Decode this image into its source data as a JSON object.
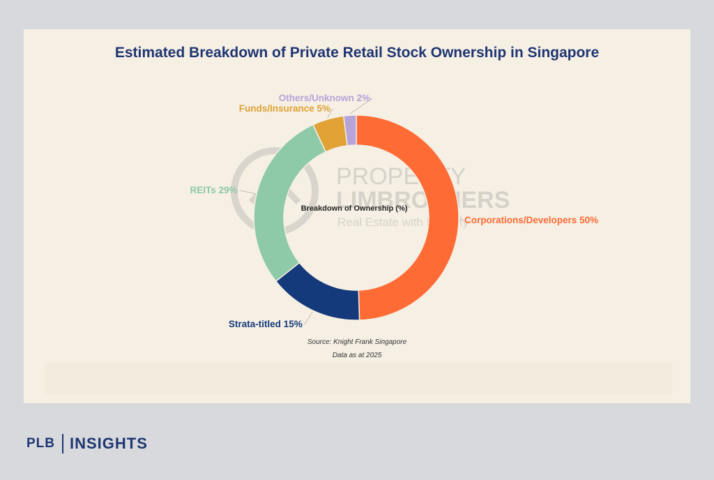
{
  "title": "Estimated Breakdown of Private Retail Stock Ownership in Singapore",
  "watermark": {
    "line1": "PROPERTY",
    "line2": "LIMBROTHERS",
    "line3": "Real Estate with Integrity"
  },
  "source": "Source: Knight Frank Singapore",
  "data_note": "Data as at 2025",
  "footer": {
    "brand": "PLB",
    "section": "INSIGHTS"
  },
  "chart_data": {
    "type": "pie",
    "title": "Estimated Breakdown of Private Retail Stock Ownership in Singapore",
    "center_label": "Breakdown of Ownership (%)",
    "slices": [
      {
        "label": "Corporations/Developers 50%",
        "category": "Corporations/Developers",
        "value": 50,
        "color": "#ff6b35"
      },
      {
        "label": "Strata-titled 15%",
        "category": "Strata-titled",
        "value": 15,
        "color": "#143a7b"
      },
      {
        "label": "REITs 29%",
        "category": "REITs",
        "value": 29,
        "color": "#8ec9a8"
      },
      {
        "label": "Funds/Insurance 5%",
        "category": "Funds/Insurance",
        "value": 5,
        "color": "#e0a234"
      },
      {
        "label": "Others/Unknown 2%",
        "category": "Others/Unknown",
        "value": 2,
        "color": "#b6a3d8"
      }
    ]
  }
}
